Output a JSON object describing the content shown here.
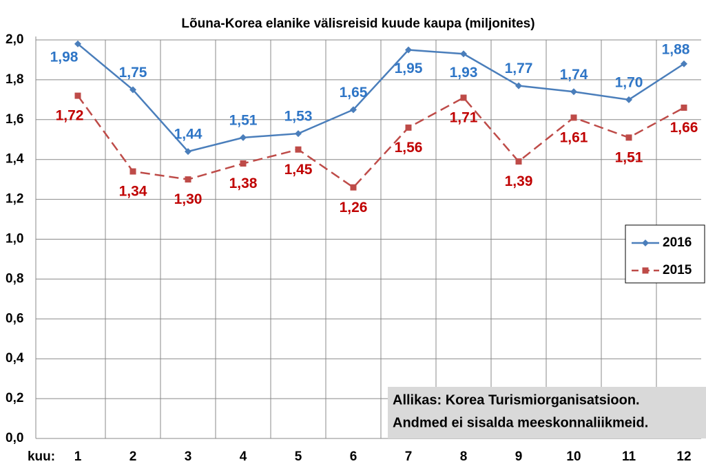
{
  "chart_data": {
    "type": "line",
    "title": "Lõuna-Korea elanike välisreisid kuude kaupa (miljonites)",
    "xlabel": "kuu:",
    "categories": [
      "1",
      "2",
      "3",
      "4",
      "5",
      "6",
      "7",
      "8",
      "9",
      "10",
      "11",
      "12"
    ],
    "series": [
      {
        "name": "2016",
        "color": "#4a7ebb",
        "label_color": "#2e75c6",
        "marker": "diamond",
        "dash": false,
        "values": [
          1.98,
          1.75,
          1.44,
          1.51,
          1.53,
          1.65,
          1.95,
          1.93,
          1.77,
          1.74,
          1.7,
          1.88
        ],
        "value_labels": [
          "1,98",
          "1,75",
          "1,44",
          "1,51",
          "1,53",
          "1,65",
          "1,95",
          "1,93",
          "1,77",
          "1,74",
          "1,70",
          "1,88"
        ]
      },
      {
        "name": "2015",
        "color": "#be4b48",
        "label_color": "#c00000",
        "marker": "square",
        "dash": true,
        "values": [
          1.72,
          1.34,
          1.3,
          1.38,
          1.45,
          1.26,
          1.56,
          1.71,
          1.39,
          1.61,
          1.51,
          1.66
        ],
        "value_labels": [
          "1,72",
          "1,34",
          "1,30",
          "1,38",
          "1,45",
          "1,26",
          "1,56",
          "1,71",
          "1,39",
          "1,61",
          "1,51",
          "1,66"
        ]
      }
    ],
    "ylim": [
      0,
      2
    ],
    "yticks": [
      {
        "value": 0,
        "label": "0,0"
      },
      {
        "value": 0.2,
        "label": "0,2"
      },
      {
        "value": 0.4,
        "label": "0,4"
      },
      {
        "value": 0.6,
        "label": "0,6"
      },
      {
        "value": 0.8,
        "label": "0,8"
      },
      {
        "value": 1,
        "label": "1,0"
      },
      {
        "value": 1.2,
        "label": "1,2"
      },
      {
        "value": 1.4,
        "label": "1,4"
      },
      {
        "value": 1.6,
        "label": "1,6"
      },
      {
        "value": 1.8,
        "label": "1,8"
      },
      {
        "value": 2,
        "label": "2,0"
      }
    ],
    "grid": true,
    "legend": "right",
    "annotation": [
      "Allikas: Korea Turismiorganisatsioon.",
      "Andmed ei sisalda meeskonnaliikmeid."
    ]
  }
}
